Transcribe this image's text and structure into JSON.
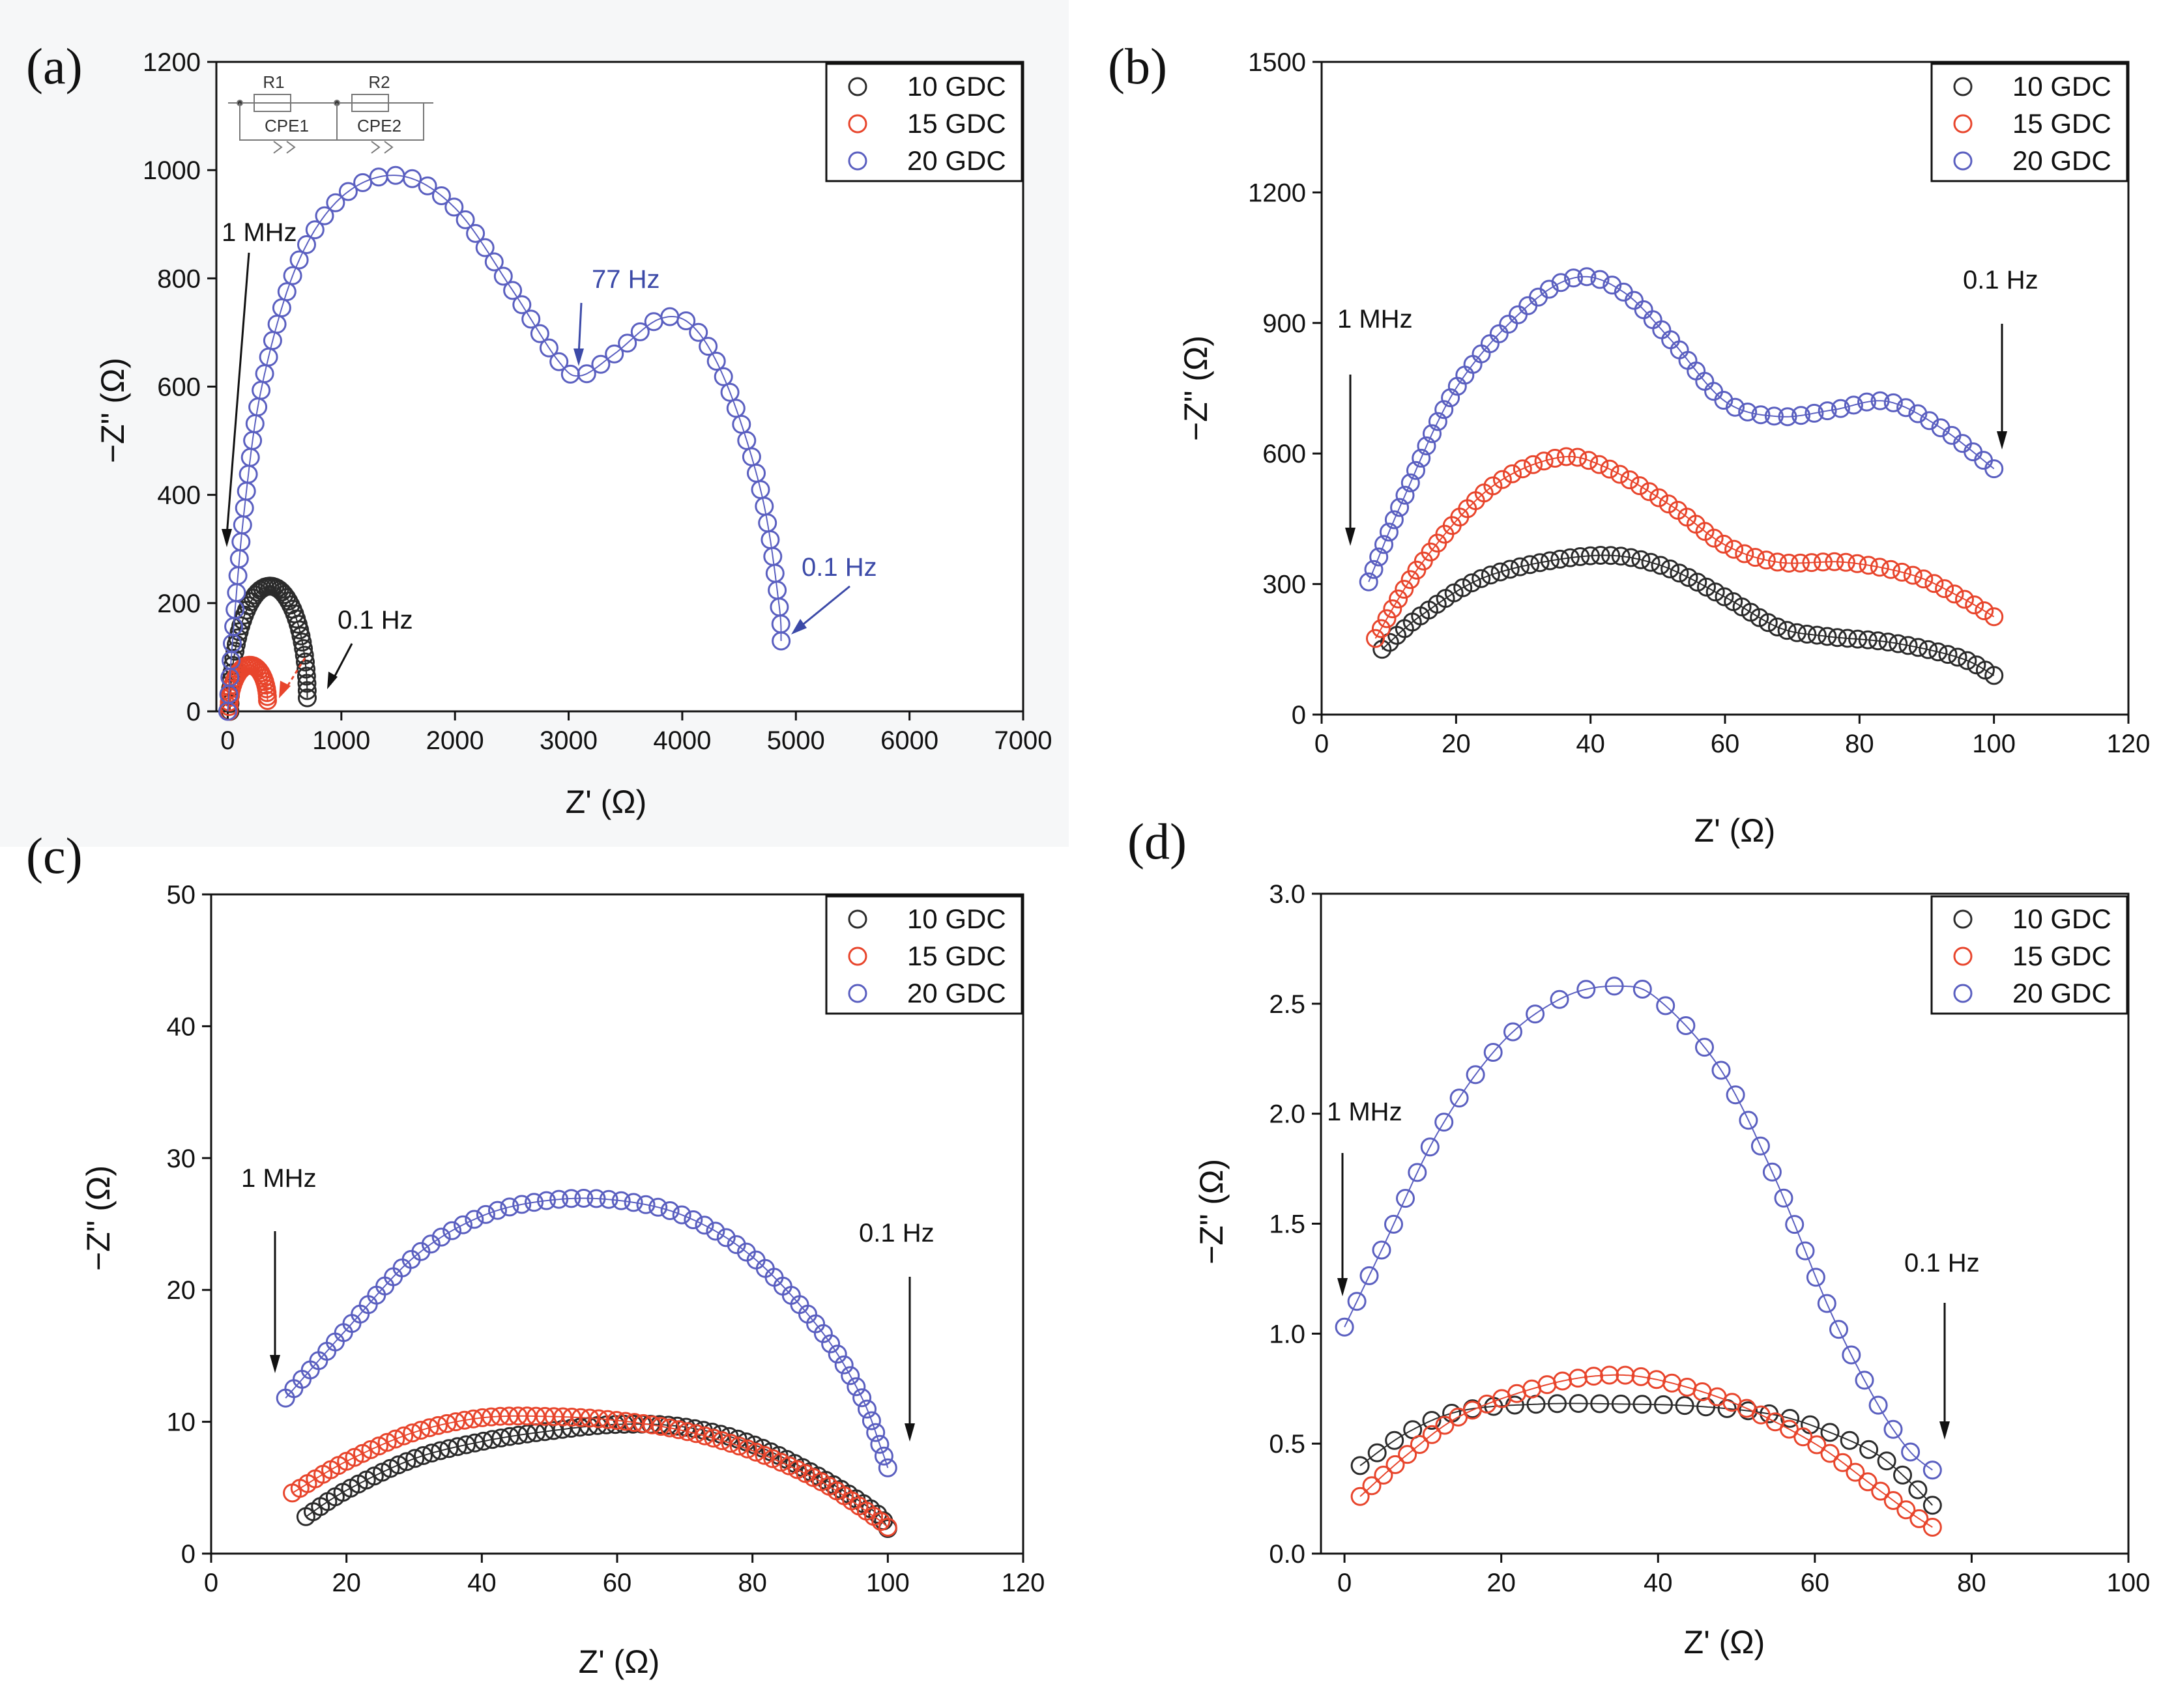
{
  "colors": {
    "10 GDC": "#2b2b2b",
    "15 GDC": "#e8452c",
    "20 GDC": "#5a5fc0",
    "axis": "#111111",
    "annotation_blue": "#3c4aa8"
  },
  "chart_data": [
    {
      "type": "scatter",
      "panel": "(a)",
      "xlabel": "Z' (Ω)",
      "ylabel": "−Z\" (Ω)",
      "xlim": [
        -100,
        7000
      ],
      "ylim": [
        0,
        1200
      ],
      "xticks": [
        0,
        1000,
        2000,
        3000,
        4000,
        5000,
        6000,
        7000
      ],
      "yticks": [
        0,
        200,
        400,
        600,
        800,
        1000,
        1200
      ],
      "xtick_labels": [
        "0",
        "1000",
        "2000",
        "3000",
        "4000",
        "5000",
        "6000",
        "7000"
      ],
      "ytick_labels": [
        "0",
        "200",
        "400",
        "600",
        "800",
        "1000",
        "1200"
      ],
      "legend": [
        "10 GDC",
        "15 GDC",
        "20 GDC"
      ],
      "inset_circuit": [
        "R1",
        "CPE1",
        "R2",
        "CPE2"
      ],
      "series": [
        {
          "name": "10 GDC",
          "shape": "arc",
          "x_range": [
            20,
            700
          ],
          "peak": [
            400,
            225
          ],
          "end_y": 25,
          "n": 50
        },
        {
          "name": "15 GDC",
          "shape": "arc",
          "x_range": [
            10,
            350
          ],
          "peak": [
            200,
            80
          ],
          "end_y": 20,
          "n": 30
        },
        {
          "name": "20 GDC",
          "shape": "knots",
          "n": 80,
          "knots": [
            [
              0,
              0
            ],
            [
              50,
              150
            ],
            [
              150,
              380
            ],
            [
              300,
              600
            ],
            [
              600,
              820
            ],
            [
              1000,
              950
            ],
            [
              1500,
              990
            ],
            [
              2000,
              930
            ],
            [
              2500,
              780
            ],
            [
              2900,
              650
            ],
            [
              3100,
              620
            ],
            [
              3400,
              660
            ],
            [
              3800,
              725
            ],
            [
              4100,
              710
            ],
            [
              4400,
              600
            ],
            [
              4700,
              400
            ],
            [
              4850,
              200
            ],
            [
              4870,
              130
            ]
          ]
        }
      ],
      "annotations": [
        {
          "text": "1 MHz",
          "color": "black"
        },
        {
          "text": "0.1 Hz",
          "color": "black"
        },
        {
          "text": "77 Hz",
          "color": "blue"
        },
        {
          "text": "0.1 Hz",
          "color": "blue"
        }
      ]
    },
    {
      "type": "scatter",
      "panel": "(b)",
      "xlabel": "Z' (Ω)",
      "ylabel": "−Z\" (Ω)",
      "xlim": [
        0,
        120
      ],
      "ylim": [
        0,
        1500
      ],
      "xticks": [
        0,
        20,
        40,
        60,
        80,
        100,
        120
      ],
      "yticks": [
        0,
        300,
        600,
        900,
        1200,
        1500
      ],
      "xtick_labels": [
        "0",
        "20",
        "40",
        "60",
        "80",
        "100",
        "120"
      ],
      "ytick_labels": [
        "0",
        "300",
        "600",
        "900",
        "1200",
        "1500"
      ],
      "legend": [
        "10 GDC",
        "15 GDC",
        "20 GDC"
      ],
      "series": [
        {
          "name": "10 GDC",
          "shape": "knots",
          "n": 66,
          "knots": [
            [
              9,
              150
            ],
            [
              15,
              230
            ],
            [
              25,
              320
            ],
            [
              40,
              365
            ],
            [
              50,
              345
            ],
            [
              60,
              270
            ],
            [
              68,
              200
            ],
            [
              75,
              180
            ],
            [
              85,
              165
            ],
            [
              95,
              130
            ],
            [
              100,
              90
            ]
          ]
        },
        {
          "name": "15 GDC",
          "shape": "knots",
          "n": 66,
          "knots": [
            [
              8,
              175
            ],
            [
              15,
              350
            ],
            [
              25,
              520
            ],
            [
              35,
              590
            ],
            [
              42,
              570
            ],
            [
              52,
              480
            ],
            [
              60,
              390
            ],
            [
              68,
              350
            ],
            [
              78,
              350
            ],
            [
              88,
              320
            ],
            [
              95,
              270
            ],
            [
              100,
              225
            ]
          ]
        },
        {
          "name": "20 GDC",
          "shape": "knots",
          "n": 66,
          "knots": [
            [
              7,
              305
            ],
            [
              12,
              490
            ],
            [
              20,
              750
            ],
            [
              30,
              930
            ],
            [
              38,
              1005
            ],
            [
              45,
              970
            ],
            [
              52,
              860
            ],
            [
              60,
              720
            ],
            [
              68,
              685
            ],
            [
              76,
              700
            ],
            [
              84,
              720
            ],
            [
              92,
              660
            ],
            [
              100,
              565
            ]
          ]
        }
      ],
      "annotations": [
        {
          "text": "1 MHz",
          "color": "black"
        },
        {
          "text": "0.1 Hz",
          "color": "black"
        }
      ]
    },
    {
      "type": "scatter",
      "panel": "(c)",
      "xlabel": "Z' (Ω)",
      "ylabel": "−Z\" (Ω)",
      "xlim": [
        0,
        120
      ],
      "ylim": [
        0,
        50
      ],
      "xticks": [
        0,
        20,
        40,
        60,
        80,
        100,
        120
      ],
      "yticks": [
        0,
        10,
        20,
        30,
        40,
        50
      ],
      "xtick_labels": [
        "0",
        "20",
        "40",
        "60",
        "80",
        "100",
        "120"
      ],
      "ytick_labels": [
        "0",
        "10",
        "20",
        "30",
        "40",
        "50"
      ],
      "legend": [
        "10 GDC",
        "15 GDC",
        "20 GDC"
      ],
      "series": [
        {
          "name": "10 GDC",
          "shape": "knots",
          "n": 72,
          "knots": [
            [
              14,
              2.8
            ],
            [
              20,
              4.8
            ],
            [
              30,
              7.2
            ],
            [
              40,
              8.5
            ],
            [
              50,
              9.3
            ],
            [
              60,
              9.8
            ],
            [
              70,
              9.6
            ],
            [
              80,
              8.3
            ],
            [
              90,
              5.8
            ],
            [
              98,
              3.2
            ],
            [
              100,
              1.9
            ]
          ]
        },
        {
          "name": "15 GDC",
          "shape": "knots",
          "n": 72,
          "knots": [
            [
              12,
              4.6
            ],
            [
              20,
              7
            ],
            [
              30,
              9.2
            ],
            [
              40,
              10.3
            ],
            [
              50,
              10.4
            ],
            [
              60,
              10.1
            ],
            [
              70,
              9.3
            ],
            [
              80,
              7.8
            ],
            [
              90,
              5.5
            ],
            [
              98,
              2.8
            ],
            [
              100,
              2
            ]
          ]
        },
        {
          "name": "20 GDC",
          "shape": "knots",
          "n": 66,
          "knots": [
            [
              11,
              11.8
            ],
            [
              20,
              17
            ],
            [
              30,
              22.5
            ],
            [
              40,
              25.6
            ],
            [
              50,
              26.8
            ],
            [
              60,
              26.8
            ],
            [
              70,
              25.6
            ],
            [
              80,
              22.5
            ],
            [
              90,
              17
            ],
            [
              96,
              12
            ],
            [
              99,
              8
            ],
            [
              100,
              6.5
            ]
          ]
        }
      ],
      "annotations": [
        {
          "text": "1 MHz",
          "color": "black"
        },
        {
          "text": "0.1 Hz",
          "color": "black"
        }
      ]
    },
    {
      "type": "scatter",
      "panel": "(d)",
      "xlabel": "Z' (Ω)",
      "ylabel": "−Z\" (Ω)",
      "xlim": [
        -3,
        100
      ],
      "ylim": [
        0,
        3.0
      ],
      "xticks": [
        0,
        20,
        40,
        60,
        80,
        100
      ],
      "yticks": [
        0,
        0.5,
        1.0,
        1.5,
        2.0,
        2.5,
        3.0
      ],
      "xtick_labels": [
        "0",
        "20",
        "40",
        "60",
        "80",
        "100"
      ],
      "ytick_labels": [
        "0.0",
        "0.5",
        "1.0",
        "1.5",
        "2.0",
        "2.5",
        "3.0"
      ],
      "legend": [
        "10 GDC",
        "15 GDC",
        "20 GDC"
      ],
      "series": [
        {
          "name": "10 GDC",
          "shape": "knots",
          "n": 30,
          "knots": [
            [
              2,
              0.4
            ],
            [
              8,
              0.55
            ],
            [
              15,
              0.65
            ],
            [
              25,
              0.68
            ],
            [
              35,
              0.68
            ],
            [
              45,
              0.67
            ],
            [
              55,
              0.63
            ],
            [
              62,
              0.55
            ],
            [
              68,
              0.45
            ],
            [
              72,
              0.33
            ],
            [
              75,
              0.22
            ]
          ]
        },
        {
          "name": "15 GDC",
          "shape": "knots",
          "n": 42,
          "knots": [
            [
              2,
              0.26
            ],
            [
              8,
              0.45
            ],
            [
              15,
              0.63
            ],
            [
              25,
              0.76
            ],
            [
              33,
              0.81
            ],
            [
              40,
              0.79
            ],
            [
              50,
              0.68
            ],
            [
              60,
              0.5
            ],
            [
              67,
              0.32
            ],
            [
              72,
              0.19
            ],
            [
              75,
              0.12
            ]
          ]
        },
        {
          "name": "20 GDC",
          "shape": "knots",
          "n": 38,
          "knots": [
            [
              0,
              1.03
            ],
            [
              5,
              1.4
            ],
            [
              12,
              1.92
            ],
            [
              20,
              2.32
            ],
            [
              28,
              2.53
            ],
            [
              35,
              2.58
            ],
            [
              40,
              2.52
            ],
            [
              48,
              2.2
            ],
            [
              55,
              1.7
            ],
            [
              62,
              1.1
            ],
            [
              68,
              0.68
            ],
            [
              72,
              0.47
            ],
            [
              75,
              0.38
            ]
          ]
        }
      ],
      "annotations": [
        {
          "text": "1 MHz",
          "color": "black"
        },
        {
          "text": "0.1 Hz",
          "color": "black"
        }
      ]
    }
  ]
}
